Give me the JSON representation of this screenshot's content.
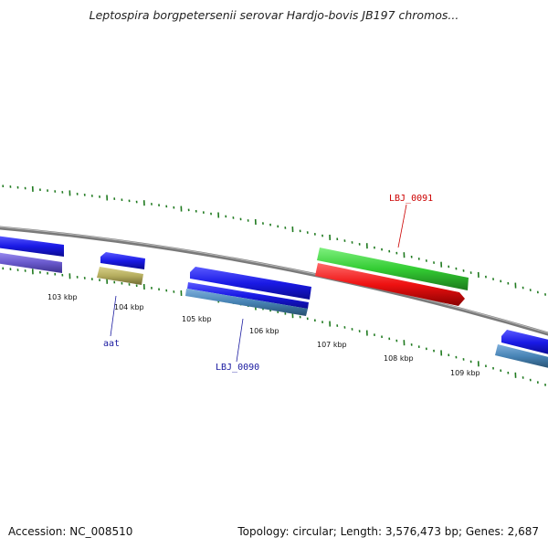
{
  "title": "Leptospira borgpetersenii serovar Hardjo-bovis JB197 chromos...",
  "footer": {
    "accession": "Accession: NC_008510",
    "summary": "Topology: circular; Length: 3,576,473 bp; Genes: 2,687"
  },
  "ticks": [
    {
      "label": "103 kbp"
    },
    {
      "label": "104 kbp"
    },
    {
      "label": "105 kbp"
    },
    {
      "label": "106 kbp"
    },
    {
      "label": "107 kbp"
    },
    {
      "label": "108 kbp"
    },
    {
      "label": "109 kbp"
    }
  ],
  "gene_labels": {
    "aat": "aat",
    "lbj_0090": "LBJ_0090",
    "lbj_0091": "LBJ_0091"
  },
  "colors": {
    "backbone": "#808080",
    "tick_green": "#1f7a1f",
    "gene_blue": "#1a1ae6",
    "gene_purple": "#6a5acd",
    "gene_olive": "#b5ad5e",
    "gene_steel": "#4682b4",
    "gene_green": "#33cc33",
    "gene_red": "#ee1111",
    "label_blue": "#1a1aa0",
    "label_red": "#cc0000"
  }
}
